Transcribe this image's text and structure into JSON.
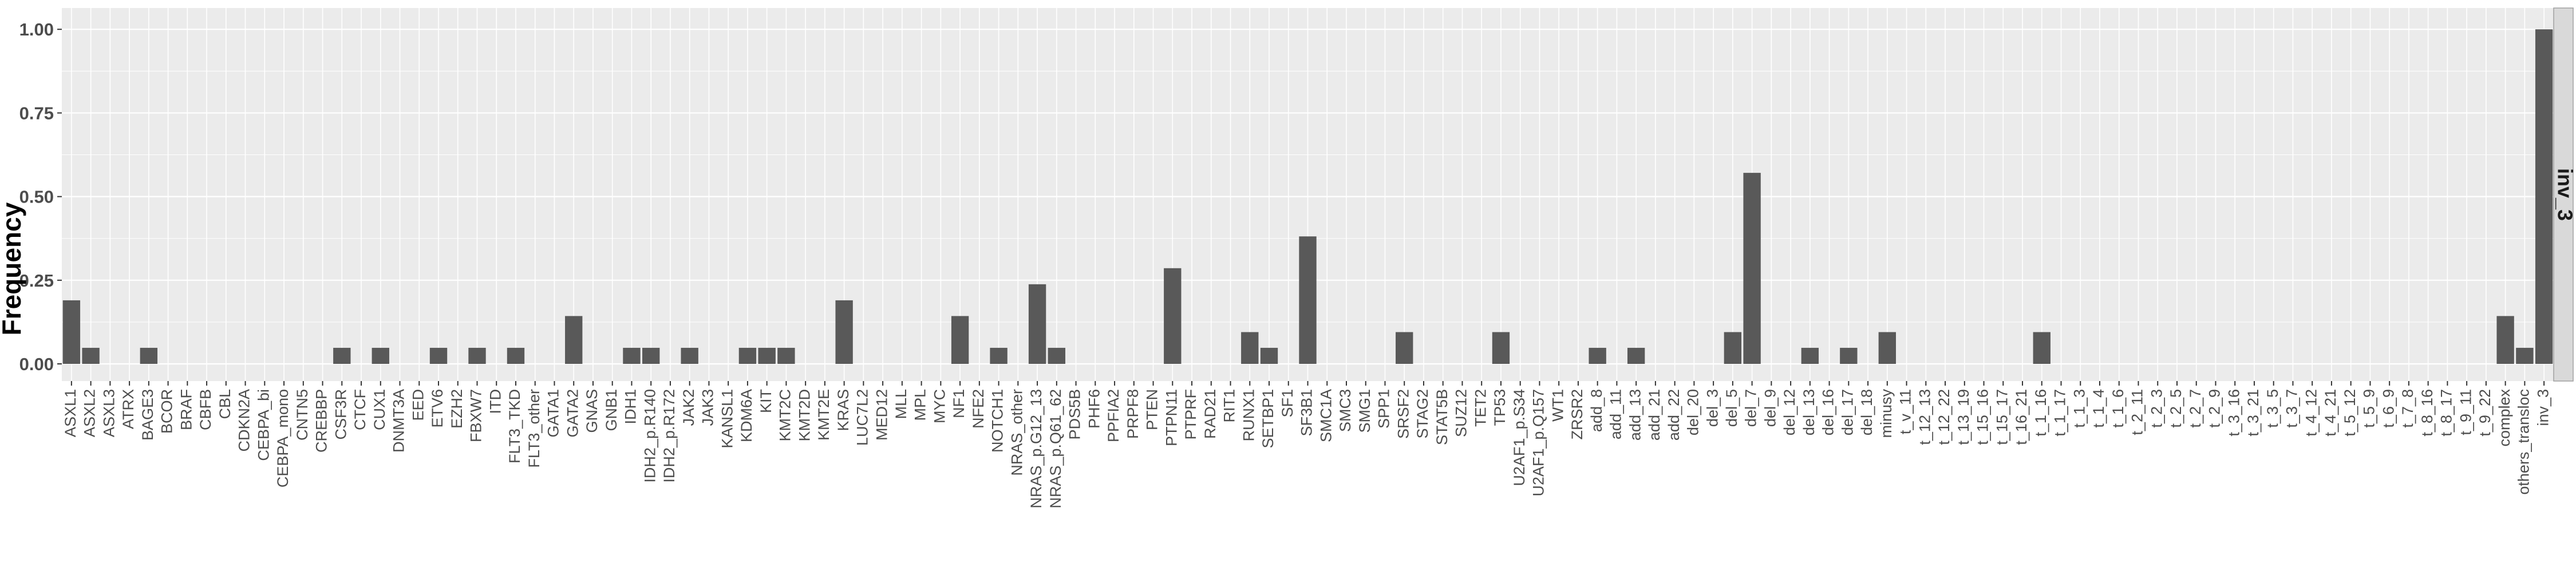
{
  "chart_data": {
    "type": "bar",
    "title": "",
    "xlabel": "",
    "ylabel": "Frequency",
    "ylim": [
      0,
      1.05
    ],
    "yticks": [
      "0.00",
      "0.25",
      "0.50",
      "0.75",
      "1.00"
    ],
    "ytick_values": [
      0,
      0.25,
      0.5,
      0.75,
      1.0
    ],
    "grid": true,
    "legend": "none",
    "facet_label": "inv_3",
    "categories": [
      "ASXL1",
      "ASXL2",
      "ASXL3",
      "ATRX",
      "BAGE3",
      "BCOR",
      "BRAF",
      "CBFB",
      "CBL",
      "CDKN2A",
      "CEBPA_bi",
      "CEBPA_mono",
      "CNTN5",
      "CREBBP",
      "CSF3R",
      "CTCF",
      "CUX1",
      "DNMT3A",
      "EED",
      "ETV6",
      "EZH2",
      "FBXW7",
      "ITD",
      "FLT3_TKD",
      "FLT3_other",
      "GATA1",
      "GATA2",
      "GNAS",
      "GNB1",
      "IDH1",
      "IDH2_p.R140",
      "IDH2_p.R172",
      "JAK2",
      "JAK3",
      "KANSL1",
      "KDM6A",
      "KIT",
      "KMT2C",
      "KMT2D",
      "KMT2E",
      "KRAS",
      "LUC7L2",
      "MED12",
      "MLL",
      "MPL",
      "MYC",
      "NF1",
      "NFE2",
      "NOTCH1",
      "NRAS_other",
      "NRAS_p.G12_13",
      "NRAS_p.Q61_62",
      "PDS5B",
      "PHF6",
      "PPFIA2",
      "PRPF8",
      "PTEN",
      "PTPN11",
      "PTPRF",
      "RAD21",
      "RIT1",
      "RUNX1",
      "SETBP1",
      "SF1",
      "SF3B1",
      "SMC1A",
      "SMC3",
      "SMG1",
      "SPP1",
      "SRSF2",
      "STAG2",
      "STAT5B",
      "SUZ12",
      "TET2",
      "TP53",
      "U2AF1_p.S34",
      "U2AF1_p.Q157",
      "WT1",
      "ZRSR2",
      "add_8",
      "add_11",
      "add_13",
      "add_21",
      "add_22",
      "del_20",
      "del_3",
      "del_5",
      "del_7",
      "del_9",
      "del_12",
      "del_13",
      "del_16",
      "del_17",
      "del_18",
      "minusy",
      "t_v_11",
      "t_12_13",
      "t_12_22",
      "t_13_19",
      "t_15_16",
      "t_15_17",
      "t_16_21",
      "t_1_16",
      "t_1_17",
      "t_1_3",
      "t_1_4",
      "t_1_6",
      "t_2_11",
      "t_2_3",
      "t_2_5",
      "t_2_7",
      "t_2_9",
      "t_3_16",
      "t_3_21",
      "t_3_5",
      "t_3_7",
      "t_4_12",
      "t_4_21",
      "t_5_12",
      "t_5_9",
      "t_6_9",
      "t_7_8",
      "t_8_16",
      "t_8_17",
      "t_9_11",
      "t_9_22",
      "complex",
      "others_transloc",
      "inv_3"
    ],
    "values": [
      0.19,
      0.048,
      0,
      0,
      0.048,
      0,
      0,
      0,
      0,
      0,
      0,
      0,
      0,
      0,
      0.048,
      0,
      0.048,
      0,
      0,
      0.048,
      0,
      0.048,
      0,
      0.048,
      0,
      0,
      0.143,
      0,
      0,
      0.048,
      0.048,
      0,
      0.048,
      0,
      0,
      0.048,
      0.048,
      0.048,
      0,
      0,
      0.19,
      0,
      0,
      0,
      0,
      0,
      0.143,
      0,
      0.048,
      0,
      0.238,
      0.048,
      0,
      0,
      0,
      0,
      0,
      0.286,
      0,
      0,
      0,
      0.095,
      0.048,
      0,
      0.381,
      0,
      0,
      0,
      0,
      0.095,
      0,
      0,
      0,
      0,
      0.095,
      0,
      0,
      0,
      0,
      0.048,
      0,
      0.048,
      0,
      0,
      0,
      0,
      0.095,
      0.571,
      0,
      0,
      0.048,
      0,
      0.048,
      0,
      0.095,
      0,
      0,
      0,
      0,
      0,
      0,
      0,
      0.095,
      0,
      0,
      0,
      0,
      0,
      0,
      0,
      0,
      0,
      0,
      0,
      0,
      0,
      0,
      0,
      0,
      0,
      0,
      0,
      0,
      0,
      0,
      0,
      0.143,
      0.048,
      1.0
    ],
    "colors": {
      "bar": "#595959",
      "panel": "#ebebeb",
      "grid": "#ffffff",
      "strip": "#d9d9d9",
      "axis_text": "#4d4d4d"
    }
  }
}
